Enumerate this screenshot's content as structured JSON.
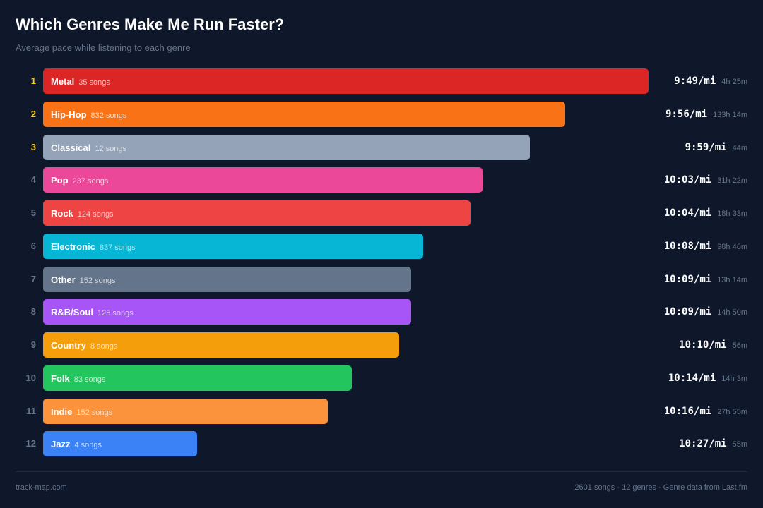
{
  "chart_data": {
    "type": "bar",
    "orientation": "horizontal",
    "title": "Which Genres Make Me Run Faster?",
    "subtitle": "Average pace while listening to each genre",
    "rank_highlight_color": "#facc15",
    "rows": [
      {
        "rank": "1",
        "genre": "Metal",
        "songs": "35 songs",
        "pace": "9:49/mi",
        "duration": "4h 25m",
        "color": "#dc2626"
      },
      {
        "rank": "2",
        "genre": "Hip-Hop",
        "songs": "832 songs",
        "pace": "9:56/mi",
        "duration": "133h 14m",
        "color": "#f97316"
      },
      {
        "rank": "3",
        "genre": "Classical",
        "songs": "12 songs",
        "pace": "9:59/mi",
        "duration": "44m",
        "color": "#94a3b8"
      },
      {
        "rank": "4",
        "genre": "Pop",
        "songs": "237 songs",
        "pace": "10:03/mi",
        "duration": "31h 22m",
        "color": "#ec4899"
      },
      {
        "rank": "5",
        "genre": "Rock",
        "songs": "124 songs",
        "pace": "10:04/mi",
        "duration": "18h 33m",
        "color": "#ef4444"
      },
      {
        "rank": "6",
        "genre": "Electronic",
        "songs": "837 songs",
        "pace": "10:08/mi",
        "duration": "98h 46m",
        "color": "#06b6d4"
      },
      {
        "rank": "7",
        "genre": "Other",
        "songs": "152 songs",
        "pace": "10:09/mi",
        "duration": "13h 14m",
        "color": "#64748b"
      },
      {
        "rank": "8",
        "genre": "R&B/Soul",
        "songs": "125 songs",
        "pace": "10:09/mi",
        "duration": "14h 50m",
        "color": "#a855f7"
      },
      {
        "rank": "9",
        "genre": "Country",
        "songs": "8 songs",
        "pace": "10:10/mi",
        "duration": "56m",
        "color": "#f59e0b"
      },
      {
        "rank": "10",
        "genre": "Folk",
        "songs": "83 songs",
        "pace": "10:14/mi",
        "duration": "14h 3m",
        "color": "#22c55e"
      },
      {
        "rank": "11",
        "genre": "Indie",
        "songs": "152 songs",
        "pace": "10:16/mi",
        "duration": "27h 55m",
        "color": "#fb923c"
      },
      {
        "rank": "12",
        "genre": "Jazz",
        "songs": "4 songs",
        "pace": "10:27/mi",
        "duration": "55m",
        "color": "#3b82f6"
      }
    ]
  },
  "footer": {
    "site": "track-map.com",
    "summary": "2601 songs · 12 genres · Genre data from Last.fm"
  }
}
